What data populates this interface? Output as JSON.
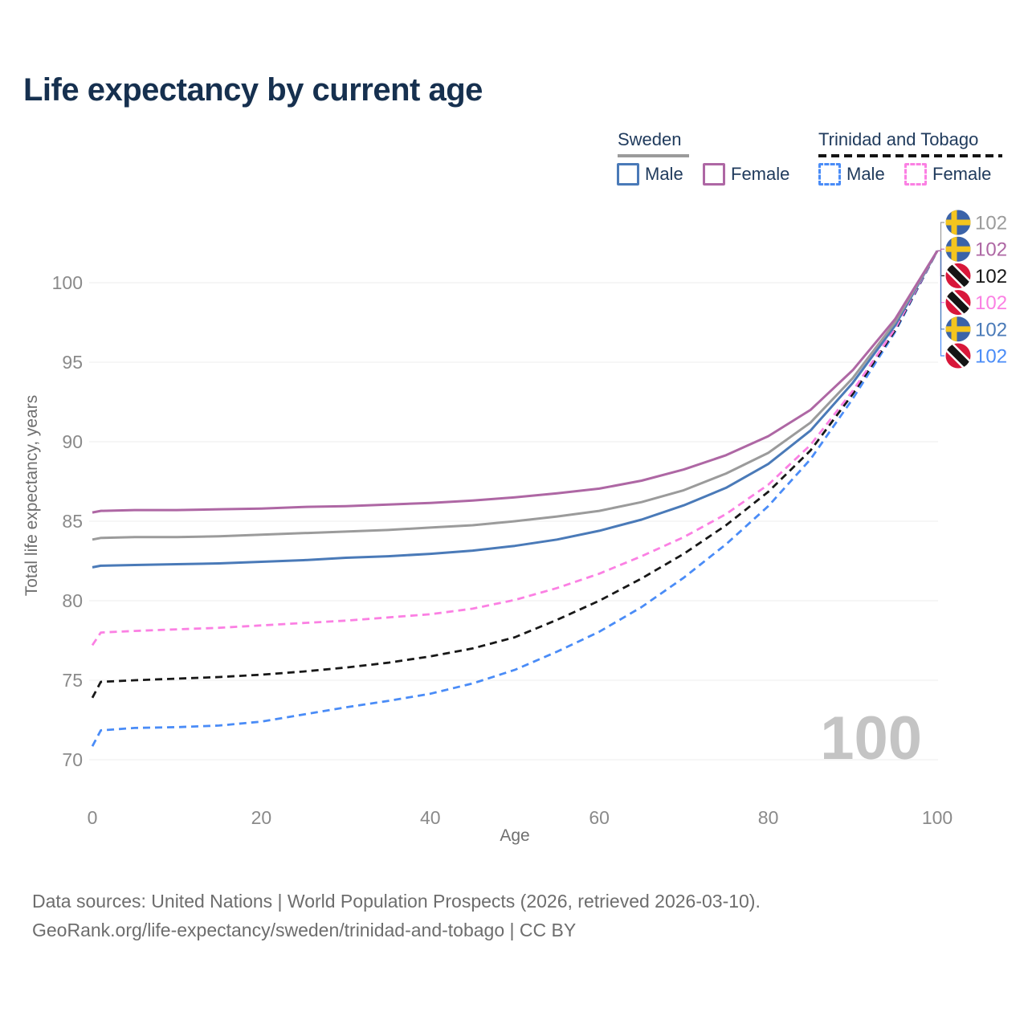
{
  "title": "Life expectancy by current age",
  "watermark": "100",
  "legend": {
    "groups": [
      {
        "label": "Sweden",
        "underline_style": "solid",
        "underline_color": "#9b9b9b",
        "items": [
          {
            "label": "Male",
            "color": "#4a7ab8",
            "box_style": "solid"
          },
          {
            "label": "Female",
            "color": "#ae67a4",
            "box_style": "solid"
          }
        ]
      },
      {
        "label": "Trinidad and Tobago",
        "underline_style": "dashed",
        "underline_color": "#141414",
        "items": [
          {
            "label": "Male",
            "color": "#4a8cf7",
            "box_style": "dashed"
          },
          {
            "label": "Female",
            "color": "#fb80e3",
            "box_style": "dashed"
          }
        ]
      }
    ]
  },
  "chart_data": {
    "type": "line",
    "title": "Life expectancy by current age",
    "x_axis": {
      "label": "Age",
      "ticks": [
        0,
        20,
        40,
        60,
        80,
        100
      ],
      "range": [
        0,
        100
      ]
    },
    "y_axis": {
      "label": "Total life expectancy, years",
      "ticks": [
        70,
        75,
        80,
        85,
        90,
        95,
        100
      ],
      "range": [
        70,
        102
      ]
    },
    "grid": "horizontal",
    "series": [
      {
        "id": "trinidad-male",
        "name": "Trinidad and Tobago — Male",
        "country": "Trinidad and Tobago",
        "sex": "Male",
        "color": "#4a8cf7",
        "dash": "dashed",
        "flag": "trinidad",
        "end_label": "102",
        "end_value": 102,
        "label_row": 5,
        "points": [
          [
            0,
            70.85
          ],
          [
            1,
            71.85
          ],
          [
            5,
            72.0
          ],
          [
            10,
            72.05
          ],
          [
            15,
            72.15
          ],
          [
            20,
            72.4
          ],
          [
            25,
            72.85
          ],
          [
            30,
            73.3
          ],
          [
            35,
            73.7
          ],
          [
            40,
            74.15
          ],
          [
            45,
            74.8
          ],
          [
            50,
            75.65
          ],
          [
            55,
            76.8
          ],
          [
            60,
            78.05
          ],
          [
            65,
            79.6
          ],
          [
            70,
            81.45
          ],
          [
            75,
            83.55
          ],
          [
            80,
            85.95
          ],
          [
            85,
            88.9
          ],
          [
            90,
            92.7
          ],
          [
            95,
            96.9
          ],
          [
            100,
            102
          ]
        ]
      },
      {
        "id": "trinidad-both",
        "name": "Trinidad and Tobago — Both sexes",
        "country": "Trinidad and Tobago",
        "sex": "Both",
        "color": "#181818",
        "dash": "dashed",
        "flag": "trinidad",
        "end_label": "102",
        "end_value": 102,
        "label_row": 2,
        "points": [
          [
            0,
            73.9
          ],
          [
            1,
            74.9
          ],
          [
            5,
            75.0
          ],
          [
            10,
            75.1
          ],
          [
            15,
            75.2
          ],
          [
            20,
            75.35
          ],
          [
            25,
            75.55
          ],
          [
            30,
            75.8
          ],
          [
            35,
            76.1
          ],
          [
            40,
            76.5
          ],
          [
            45,
            77.0
          ],
          [
            50,
            77.7
          ],
          [
            55,
            78.8
          ],
          [
            60,
            80.0
          ],
          [
            65,
            81.4
          ],
          [
            70,
            82.95
          ],
          [
            75,
            84.75
          ],
          [
            80,
            86.85
          ],
          [
            85,
            89.45
          ],
          [
            90,
            93.0
          ],
          [
            95,
            97.0
          ],
          [
            100,
            102
          ]
        ]
      },
      {
        "id": "trinidad-female",
        "name": "Trinidad and Tobago — Female",
        "country": "Trinidad and Tobago",
        "sex": "Female",
        "color": "#fb80e3",
        "dash": "dashed",
        "flag": "trinidad",
        "end_label": "102",
        "end_value": 102,
        "label_row": 3,
        "points": [
          [
            0,
            77.2
          ],
          [
            1,
            78.0
          ],
          [
            5,
            78.1
          ],
          [
            10,
            78.2
          ],
          [
            15,
            78.3
          ],
          [
            20,
            78.45
          ],
          [
            25,
            78.6
          ],
          [
            30,
            78.75
          ],
          [
            35,
            78.95
          ],
          [
            40,
            79.15
          ],
          [
            45,
            79.5
          ],
          [
            50,
            80.05
          ],
          [
            55,
            80.8
          ],
          [
            60,
            81.7
          ],
          [
            65,
            82.8
          ],
          [
            70,
            84.0
          ],
          [
            75,
            85.45
          ],
          [
            80,
            87.3
          ],
          [
            85,
            89.8
          ],
          [
            90,
            93.2
          ],
          [
            95,
            97.1
          ],
          [
            100,
            102
          ]
        ]
      },
      {
        "id": "sweden-male",
        "name": "Sweden — Male",
        "country": "Sweden",
        "sex": "Male",
        "color": "#4a7ab8",
        "dash": "solid",
        "flag": "sweden",
        "end_label": "102",
        "end_value": 102,
        "label_row": 4,
        "points": [
          [
            0,
            82.1
          ],
          [
            1,
            82.2
          ],
          [
            5,
            82.25
          ],
          [
            10,
            82.3
          ],
          [
            15,
            82.35
          ],
          [
            20,
            82.45
          ],
          [
            25,
            82.55
          ],
          [
            30,
            82.7
          ],
          [
            35,
            82.8
          ],
          [
            40,
            82.95
          ],
          [
            45,
            83.15
          ],
          [
            50,
            83.45
          ],
          [
            55,
            83.85
          ],
          [
            60,
            84.4
          ],
          [
            65,
            85.1
          ],
          [
            70,
            86.0
          ],
          [
            75,
            87.1
          ],
          [
            80,
            88.6
          ],
          [
            85,
            90.7
          ],
          [
            90,
            93.7
          ],
          [
            95,
            97.3
          ],
          [
            100,
            102
          ]
        ]
      },
      {
        "id": "sweden-both",
        "name": "Sweden — Both sexes",
        "country": "Sweden",
        "sex": "Both",
        "color": "#9b9b9b",
        "dash": "solid",
        "flag": "sweden",
        "end_label": "102",
        "end_value": 102,
        "label_row": 0,
        "points": [
          [
            0,
            83.85
          ],
          [
            1,
            83.95
          ],
          [
            5,
            84.0
          ],
          [
            10,
            84.0
          ],
          [
            15,
            84.05
          ],
          [
            20,
            84.15
          ],
          [
            25,
            84.25
          ],
          [
            30,
            84.35
          ],
          [
            35,
            84.45
          ],
          [
            40,
            84.6
          ],
          [
            45,
            84.75
          ],
          [
            50,
            85.0
          ],
          [
            55,
            85.3
          ],
          [
            60,
            85.65
          ],
          [
            65,
            86.2
          ],
          [
            70,
            86.95
          ],
          [
            75,
            88.0
          ],
          [
            80,
            89.3
          ],
          [
            85,
            91.2
          ],
          [
            90,
            94.0
          ],
          [
            95,
            97.5
          ],
          [
            100,
            102
          ]
        ]
      },
      {
        "id": "sweden-female",
        "name": "Sweden — Female",
        "country": "Sweden",
        "sex": "Female",
        "color": "#ae67a4",
        "dash": "solid",
        "flag": "sweden",
        "end_label": "102",
        "end_value": 102,
        "label_row": 1,
        "points": [
          [
            0,
            85.55
          ],
          [
            1,
            85.65
          ],
          [
            5,
            85.7
          ],
          [
            10,
            85.7
          ],
          [
            15,
            85.75
          ],
          [
            20,
            85.8
          ],
          [
            25,
            85.9
          ],
          [
            30,
            85.95
          ],
          [
            35,
            86.05
          ],
          [
            40,
            86.15
          ],
          [
            45,
            86.3
          ],
          [
            50,
            86.5
          ],
          [
            55,
            86.75
          ],
          [
            60,
            87.05
          ],
          [
            65,
            87.55
          ],
          [
            70,
            88.25
          ],
          [
            75,
            89.15
          ],
          [
            80,
            90.35
          ],
          [
            85,
            92.0
          ],
          [
            90,
            94.5
          ],
          [
            95,
            97.7
          ],
          [
            100,
            102
          ]
        ]
      }
    ],
    "flag_colors": {
      "sweden": {
        "blue": "#3b63a8",
        "yellow": "#f4c51f"
      },
      "trinidad": {
        "red": "#d8173a",
        "black": "#141414",
        "white": "#ffffff"
      }
    }
  },
  "footer": {
    "line1": "Data sources: United Nations | World Population Prospects (2026, retrieved 2026-03-10).",
    "line2": "GeoRank.org/life-expectancy/sweden/trinidad-and-tobago | CC BY"
  }
}
